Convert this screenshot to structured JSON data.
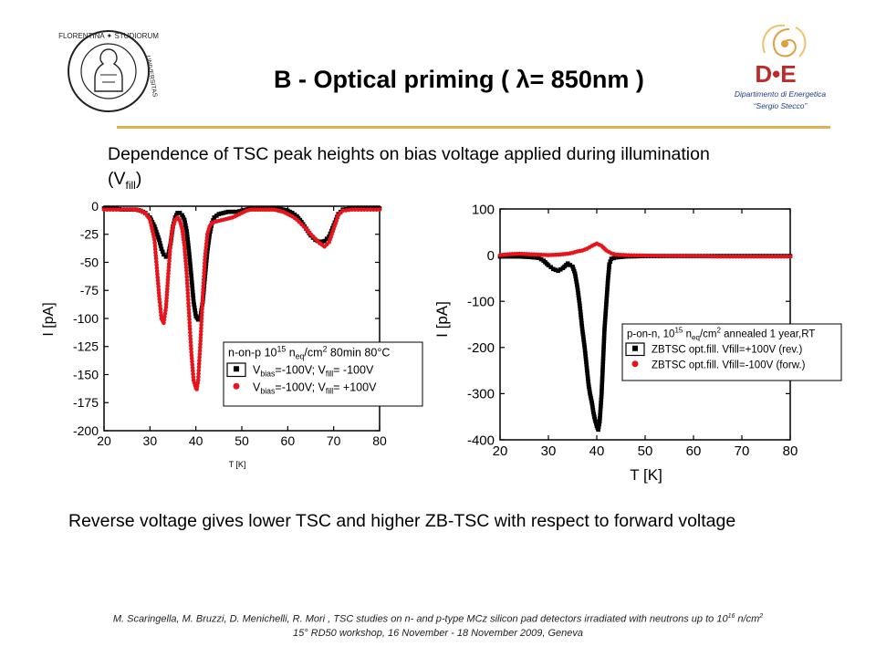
{
  "title": "B - Optical priming ( λ= 850nm )",
  "subtitle": {
    "text": "Dependence of TSC peak heights on bias voltage applied during illumination (V",
    "sub": "fill",
    "suffix": ")"
  },
  "conclusion": "Reverse voltage gives lower TSC and higher ZB-TSC with respect to forward voltage",
  "footer": {
    "line1_pre": "M. Scaringella, M. Bruzzi, D. Menichelli, R. Mori , TSC studies on n- and p-type MCz silicon pad detectors irradiated with neutrons up to 10",
    "line1_sup1": "16",
    "line1_mid": " n/cm",
    "line1_sup2": "2",
    "line2": "15° RD50 workshop, 16 November - 18 November 2009, Geneva"
  },
  "logos": {
    "left_text_top": "FLORENTINA ✦ STUDIORUM",
    "left_text_side": "UNIVERSITAS",
    "right_mark": "D•E",
    "right_line1": "Dipartimento di Energetica",
    "right_line2": "“Sergio Stecco”"
  },
  "colors": {
    "black_series": "#000000",
    "red_series": "#e8141c",
    "rule": "#e0b050",
    "de_red": "#c0282a",
    "de_blue": "#1f3c88"
  },
  "chart_data": [
    {
      "type": "scatter",
      "xlabel": "T [K]",
      "ylabel": "I [pA]",
      "xlim": [
        20,
        80
      ],
      "ylim": [
        -200,
        0
      ],
      "xticks": [
        20,
        30,
        40,
        50,
        60,
        70,
        80
      ],
      "yticks": [
        0,
        -25,
        -50,
        -75,
        -100,
        -125,
        -150,
        -175,
        -200
      ],
      "legend": {
        "header_pre": "n-on-p 10",
        "header_sup": "15",
        "header_mid": " n",
        "header_sub": "eq",
        "header_post": "/cm",
        "header_sup2": "2",
        "header_tail": " 80min 80°C",
        "placement": "bottom-right"
      },
      "series": [
        {
          "color": "#000000",
          "label_parts": [
            "V",
            "bias",
            "=-100V;  V",
            "fill",
            "= -100V"
          ],
          "x": [
            20,
            22,
            24,
            26,
            27,
            28,
            29,
            30,
            31,
            32,
            32.5,
            33,
            33.5,
            34,
            34.5,
            35,
            35.5,
            36,
            36.5,
            37,
            37.5,
            38,
            38.5,
            39,
            39.5,
            40,
            40.5,
            41,
            41.5,
            42,
            42.5,
            43,
            43.5,
            44,
            45,
            46,
            47,
            48,
            49,
            50,
            51,
            52,
            53,
            54,
            55,
            56,
            57,
            58,
            59,
            60,
            61,
            62,
            63,
            64,
            65,
            66,
            67,
            68,
            69,
            70,
            71,
            72,
            74,
            76,
            78,
            80
          ],
          "y": [
            -2,
            -2,
            -3,
            -3,
            -3,
            -4,
            -6,
            -10,
            -18,
            -30,
            -38,
            -43,
            -45,
            -43,
            -33,
            -18,
            -10,
            -6,
            -6,
            -8,
            -12,
            -22,
            -40,
            -62,
            -85,
            -98,
            -101,
            -98,
            -85,
            -62,
            -40,
            -25,
            -15,
            -10,
            -7,
            -6,
            -5,
            -5,
            -5,
            -4,
            -3,
            -2,
            -2,
            -2,
            -2,
            -2,
            -2,
            -2,
            -3,
            -4,
            -6,
            -9,
            -14,
            -20,
            -26,
            -30,
            -32,
            -31,
            -27,
            -17,
            -7,
            -3,
            -2,
            -2,
            -2,
            -2
          ]
        },
        {
          "color": "#e8141c",
          "label_parts": [
            "V",
            "bias",
            "=-100V;  V",
            "fill",
            "= +100V"
          ],
          "x": [
            20,
            22,
            24,
            26,
            27,
            28,
            29,
            30,
            31,
            31.5,
            32,
            32.5,
            33,
            33.5,
            34,
            34.5,
            35,
            35.5,
            36,
            36.5,
            37,
            37.5,
            38,
            38.5,
            39,
            39.5,
            40,
            40.2,
            40.5,
            41,
            41.5,
            42,
            42.5,
            43,
            43.5,
            44,
            45,
            46,
            47,
            48,
            49,
            50,
            51,
            52,
            53,
            54,
            55,
            56,
            57,
            58,
            59,
            60,
            61,
            62,
            63,
            64,
            65,
            66,
            67,
            68,
            69,
            70,
            71,
            72,
            74,
            76,
            78,
            80
          ],
          "y": [
            -3,
            -3,
            -3,
            -3,
            -3,
            -4,
            -6,
            -12,
            -30,
            -55,
            -80,
            -100,
            -104,
            -90,
            -60,
            -32,
            -18,
            -12,
            -10,
            -13,
            -20,
            -35,
            -60,
            -95,
            -130,
            -155,
            -162,
            -163,
            -155,
            -120,
            -80,
            -45,
            -25,
            -18,
            -15,
            -14,
            -13,
            -12,
            -11,
            -10,
            -8,
            -6,
            -4,
            -3,
            -3,
            -3,
            -3,
            -3,
            -3,
            -4,
            -5,
            -7,
            -9,
            -12,
            -16,
            -20,
            -25,
            -29,
            -33,
            -36,
            -32,
            -20,
            -8,
            -4,
            -3,
            -3,
            -3,
            -3
          ]
        }
      ]
    },
    {
      "type": "scatter",
      "xlabel": "T [K]",
      "ylabel": "I [pA]",
      "xlim": [
        20,
        80
      ],
      "ylim": [
        -400,
        100
      ],
      "xticks": [
        20,
        30,
        40,
        50,
        60,
        70,
        80
      ],
      "yticks": [
        100,
        0,
        -100,
        -200,
        -300,
        -400
      ],
      "legend": {
        "header_pre": "p-on-n, 10",
        "header_sup": "15",
        "header_mid": " n",
        "header_sub": "eq",
        "header_post": "/cm",
        "header_sup2": "2",
        "header_tail": " annealed 1 year,RT",
        "placement": "right"
      },
      "series": [
        {
          "color": "#000000",
          "label_parts": [
            "ZBTSC opt.fill. Vfill=+100V (rev.)"
          ],
          "x": [
            20,
            22,
            24,
            26,
            28,
            29,
            30,
            31,
            32,
            33,
            34,
            35,
            35.5,
            36,
            36.5,
            37,
            37.5,
            38,
            38.3,
            38.6,
            39,
            39.3,
            39.6,
            40,
            40.3,
            40.6,
            41,
            41.3,
            41.6,
            42,
            42.3,
            42.6,
            43,
            44,
            46,
            50,
            55,
            60,
            65,
            70,
            75,
            80
          ],
          "y": [
            -3,
            -3,
            -3,
            -4,
            -6,
            -12,
            -22,
            -30,
            -34,
            -28,
            -18,
            -25,
            -40,
            -70,
            -110,
            -160,
            -200,
            -250,
            -280,
            -300,
            -320,
            -340,
            -355,
            -370,
            -378,
            -360,
            -300,
            -230,
            -160,
            -100,
            -55,
            -20,
            -8,
            -5,
            -3,
            -2,
            -2,
            -2,
            -2,
            -2,
            -2,
            -2
          ]
        },
        {
          "color": "#e8141c",
          "label_parts": [
            "ZBTSC opt.fill. Vfill=-100V (forw.)"
          ],
          "x": [
            20,
            22,
            24,
            26,
            28,
            30,
            32,
            34,
            35,
            36,
            37,
            38,
            39,
            40,
            41,
            42,
            43,
            44,
            46,
            50,
            55,
            60,
            65,
            70,
            75,
            80
          ],
          "y": [
            0,
            2,
            3,
            2,
            1,
            0,
            1,
            3,
            5,
            8,
            10,
            14,
            20,
            25,
            20,
            10,
            4,
            1,
            0,
            -1,
            -2,
            -2,
            -3,
            -3,
            -3,
            -3
          ]
        }
      ]
    }
  ]
}
